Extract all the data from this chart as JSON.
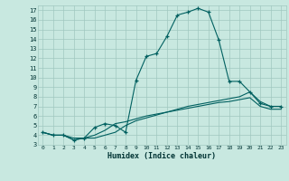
{
  "xlabel": "Humidex (Indice chaleur)",
  "bg_color": "#c8e8e0",
  "grid_color": "#a0c8c0",
  "line_color": "#006060",
  "xlim": [
    -0.5,
    23.5
  ],
  "ylim": [
    3,
    17.5
  ],
  "xtick_labels": [
    "0",
    "1",
    "2",
    "3",
    "4",
    "5",
    "6",
    "7",
    "8",
    "9",
    "10",
    "11",
    "12",
    "13",
    "14",
    "15",
    "16",
    "17",
    "18",
    "19",
    "20",
    "21",
    "22",
    "23"
  ],
  "xtick_vals": [
    0,
    1,
    2,
    3,
    4,
    5,
    6,
    7,
    8,
    9,
    10,
    11,
    12,
    13,
    14,
    15,
    16,
    17,
    18,
    19,
    20,
    21,
    22,
    23
  ],
  "ytick_vals": [
    3,
    4,
    5,
    6,
    7,
    8,
    9,
    10,
    11,
    12,
    13,
    14,
    15,
    16,
    17
  ],
  "ytick_labels": [
    "3",
    "4",
    "5",
    "6",
    "7",
    "8",
    "9",
    "10",
    "11",
    "12",
    "13",
    "14",
    "15",
    "16",
    "17"
  ],
  "line1_x": [
    0,
    1,
    2,
    3,
    4,
    5,
    6,
    7,
    8,
    9,
    10,
    11,
    12,
    13,
    14,
    15,
    16,
    17,
    18,
    19,
    20,
    21,
    22,
    23
  ],
  "line1_y": [
    4.3,
    4.0,
    4.0,
    3.5,
    3.7,
    4.8,
    5.2,
    5.0,
    4.3,
    9.7,
    12.2,
    12.5,
    14.3,
    16.5,
    16.8,
    17.2,
    16.8,
    13.9,
    9.6,
    9.6,
    8.5,
    7.3,
    7.0,
    7.0
  ],
  "line2_x": [
    0,
    1,
    2,
    3,
    4,
    5,
    6,
    7,
    8,
    9,
    10,
    11,
    12,
    13,
    14,
    15,
    16,
    17,
    18,
    19,
    20,
    21,
    22,
    23
  ],
  "line2_y": [
    4.3,
    4.0,
    4.0,
    3.7,
    3.7,
    3.7,
    4.0,
    4.3,
    5.0,
    5.5,
    5.8,
    6.1,
    6.4,
    6.7,
    7.0,
    7.2,
    7.4,
    7.6,
    7.8,
    8.0,
    8.5,
    7.5,
    7.0,
    7.0
  ],
  "line3_x": [
    0,
    1,
    2,
    3,
    4,
    5,
    6,
    7,
    8,
    9,
    10,
    11,
    12,
    13,
    14,
    15,
    16,
    17,
    18,
    19,
    20,
    21,
    22,
    23
  ],
  "line3_y": [
    4.3,
    4.0,
    4.0,
    3.5,
    3.7,
    4.0,
    4.5,
    5.2,
    5.4,
    5.7,
    6.0,
    6.2,
    6.4,
    6.6,
    6.8,
    7.0,
    7.2,
    7.4,
    7.5,
    7.7,
    7.9,
    7.0,
    6.7,
    6.7
  ]
}
